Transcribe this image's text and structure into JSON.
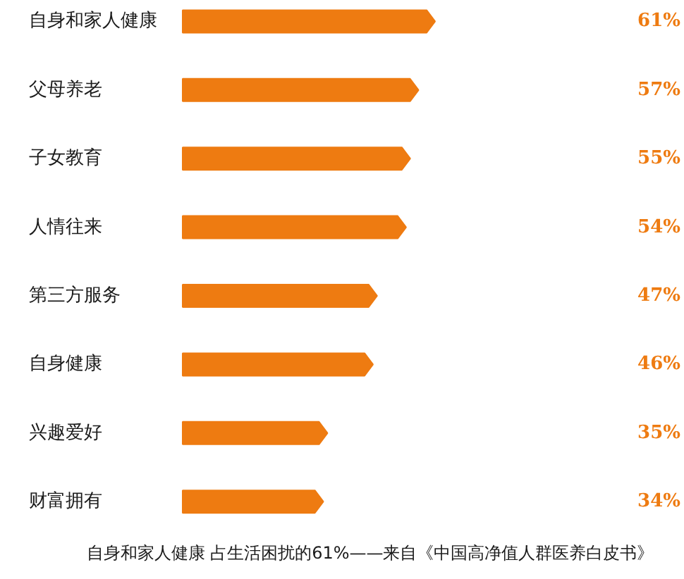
{
  "chart_data": {
    "type": "bar",
    "orientation": "horizontal",
    "categories": [
      "自身和家人健康",
      "父母养老",
      "子女教育",
      "人情往来",
      "第三方服务",
      "自身健康",
      "兴趣爱好",
      "财富拥有"
    ],
    "values": [
      61,
      57,
      55,
      54,
      47,
      46,
      35,
      34
    ],
    "value_labels": [
      "61%",
      "57%",
      "55%",
      "54%",
      "47%",
      "46%",
      "35%",
      "34%"
    ],
    "color": "#ee7b11",
    "annotations": [
      "自身和家人健康 占生活困扰的61%——来自《中国高净值人群医养白皮书》"
    ]
  }
}
